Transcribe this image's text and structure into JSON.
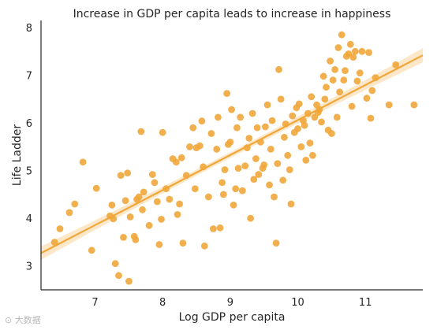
{
  "chart_data": {
    "type": "scatter",
    "title": "Increase in GDP per capita leads to increase in happiness",
    "xlabel": "Log GDP per capita",
    "ylabel": "Life Ladder",
    "xlim": [
      6.2,
      11.85
    ],
    "ylim": [
      2.5,
      8.15
    ],
    "xticks": [
      7,
      8,
      9,
      10,
      11
    ],
    "yticks": [
      3,
      4,
      5,
      6,
      7,
      8
    ],
    "grid": false,
    "colors": {
      "points": "#f0a73a",
      "line": "#f0a73a",
      "band": "#fbe3bf",
      "axis": "#262626"
    },
    "regression": {
      "x": [
        6.2,
        11.85
      ],
      "y": [
        3.27,
        7.42
      ]
    },
    "band_halfwidth": [
      0.14,
      0.06,
      0.15
    ],
    "points": [
      [
        6.4,
        3.5
      ],
      [
        6.48,
        3.78
      ],
      [
        6.62,
        4.12
      ],
      [
        6.7,
        4.3
      ],
      [
        6.82,
        5.18
      ],
      [
        6.95,
        3.33
      ],
      [
        7.02,
        4.63
      ],
      [
        7.22,
        4.05
      ],
      [
        7.25,
        4.28
      ],
      [
        7.27,
        3.99
      ],
      [
        7.3,
        3.05
      ],
      [
        7.35,
        2.8
      ],
      [
        7.38,
        4.9
      ],
      [
        7.42,
        3.6
      ],
      [
        7.45,
        4.37
      ],
      [
        7.48,
        4.95
      ],
      [
        7.5,
        2.68
      ],
      [
        7.52,
        4.03
      ],
      [
        7.58,
        3.62
      ],
      [
        7.6,
        3.55
      ],
      [
        7.62,
        4.4
      ],
      [
        7.65,
        4.45
      ],
      [
        7.68,
        5.82
      ],
      [
        7.7,
        4.18
      ],
      [
        7.72,
        4.55
      ],
      [
        7.8,
        3.85
      ],
      [
        7.85,
        4.92
      ],
      [
        7.88,
        4.75
      ],
      [
        7.92,
        4.35
      ],
      [
        7.95,
        3.45
      ],
      [
        7.98,
        3.98
      ],
      [
        8.0,
        5.8
      ],
      [
        8.05,
        4.62
      ],
      [
        8.1,
        4.4
      ],
      [
        8.15,
        5.25
      ],
      [
        8.2,
        5.18
      ],
      [
        8.22,
        4.08
      ],
      [
        8.25,
        4.3
      ],
      [
        8.28,
        5.27
      ],
      [
        8.3,
        3.48
      ],
      [
        8.35,
        4.9
      ],
      [
        8.4,
        5.5
      ],
      [
        8.45,
        5.9
      ],
      [
        8.48,
        4.62
      ],
      [
        8.5,
        5.48
      ],
      [
        8.55,
        5.52
      ],
      [
        8.58,
        6.04
      ],
      [
        8.6,
        5.08
      ],
      [
        8.62,
        3.42
      ],
      [
        8.68,
        4.45
      ],
      [
        8.72,
        5.78
      ],
      [
        8.75,
        3.78
      ],
      [
        8.8,
        5.45
      ],
      [
        8.82,
        6.12
      ],
      [
        8.85,
        3.8
      ],
      [
        8.88,
        4.75
      ],
      [
        8.9,
        4.5
      ],
      [
        8.92,
        5.02
      ],
      [
        8.95,
        6.62
      ],
      [
        8.97,
        5.55
      ],
      [
        9.0,
        5.6
      ],
      [
        9.02,
        6.28
      ],
      [
        9.05,
        4.28
      ],
      [
        9.08,
        4.62
      ],
      [
        9.1,
        5.9
      ],
      [
        9.12,
        5.05
      ],
      [
        9.15,
        6.12
      ],
      [
        9.18,
        4.58
      ],
      [
        9.22,
        5.1
      ],
      [
        9.25,
        5.48
      ],
      [
        9.28,
        5.68
      ],
      [
        9.3,
        4.0
      ],
      [
        9.33,
        6.2
      ],
      [
        9.35,
        4.82
      ],
      [
        9.38,
        5.25
      ],
      [
        9.4,
        5.9
      ],
      [
        9.42,
        4.92
      ],
      [
        9.45,
        5.6
      ],
      [
        9.48,
        5.05
      ],
      [
        9.5,
        5.12
      ],
      [
        9.52,
        5.92
      ],
      [
        9.55,
        6.38
      ],
      [
        9.58,
        4.7
      ],
      [
        9.6,
        5.45
      ],
      [
        9.62,
        6.05
      ],
      [
        9.65,
        4.45
      ],
      [
        9.68,
        3.48
      ],
      [
        9.7,
        5.15
      ],
      [
        9.72,
        7.12
      ],
      [
        9.75,
        6.5
      ],
      [
        9.78,
        4.8
      ],
      [
        9.8,
        5.7
      ],
      [
        9.82,
        5.98
      ],
      [
        9.85,
        5.32
      ],
      [
        9.88,
        5.02
      ],
      [
        9.9,
        4.3
      ],
      [
        9.92,
        6.15
      ],
      [
        9.95,
        5.8
      ],
      [
        9.98,
        6.32
      ],
      [
        10.0,
        5.88
      ],
      [
        10.02,
        6.4
      ],
      [
        10.05,
        5.5
      ],
      [
        10.08,
        6.05
      ],
      [
        10.1,
        5.95
      ],
      [
        10.12,
        5.22
      ],
      [
        10.15,
        6.2
      ],
      [
        10.18,
        5.58
      ],
      [
        10.2,
        6.55
      ],
      [
        10.22,
        5.32
      ],
      [
        10.25,
        6.12
      ],
      [
        10.28,
        6.38
      ],
      [
        10.3,
        6.22
      ],
      [
        10.32,
        6.28
      ],
      [
        10.35,
        6.02
      ],
      [
        10.38,
        6.98
      ],
      [
        10.4,
        6.5
      ],
      [
        10.42,
        6.75
      ],
      [
        10.45,
        5.85
      ],
      [
        10.48,
        7.3
      ],
      [
        10.5,
        5.78
      ],
      [
        10.52,
        6.9
      ],
      [
        10.55,
        7.12
      ],
      [
        10.58,
        6.12
      ],
      [
        10.6,
        7.58
      ],
      [
        10.62,
        6.65
      ],
      [
        10.65,
        7.85
      ],
      [
        10.68,
        6.9
      ],
      [
        10.7,
        7.1
      ],
      [
        10.72,
        7.4
      ],
      [
        10.75,
        7.45
      ],
      [
        10.78,
        7.65
      ],
      [
        10.8,
        6.35
      ],
      [
        10.82,
        7.38
      ],
      [
        10.85,
        7.5
      ],
      [
        10.88,
        6.88
      ],
      [
        10.92,
        7.05
      ],
      [
        10.95,
        7.5
      ],
      [
        11.02,
        6.52
      ],
      [
        11.05,
        7.48
      ],
      [
        11.08,
        6.1
      ],
      [
        11.1,
        6.68
      ],
      [
        11.15,
        6.95
      ],
      [
        11.35,
        6.38
      ],
      [
        11.45,
        7.22
      ],
      [
        11.72,
        6.38
      ]
    ]
  }
}
